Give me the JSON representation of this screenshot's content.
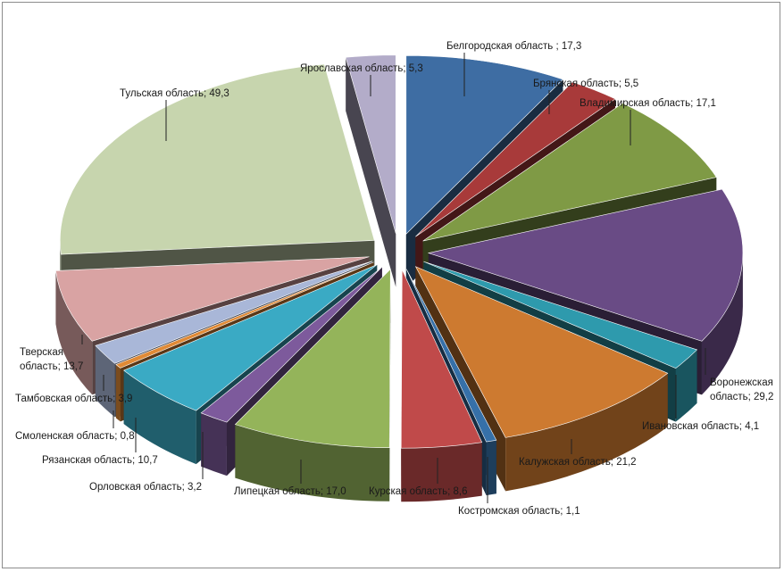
{
  "chart_data": {
    "type": "pie",
    "style": "3d-exploded",
    "title": "",
    "legend": "none",
    "slices": [
      {
        "label": "Белгородская область",
        "value": 17.3,
        "value_text": "17,3",
        "sep": " ; ",
        "color": "#3e6da3"
      },
      {
        "label": "Брянская область",
        "value": 5.5,
        "value_text": "5,5",
        "sep": "; ",
        "color": "#a83a3a"
      },
      {
        "label": "Владимирская область",
        "value": 17.1,
        "value_text": "17,1",
        "sep": "; ",
        "color": "#7f9a45"
      },
      {
        "label": "Воронежская область",
        "value": 29.2,
        "value_text": "29,2",
        "sep": "; ",
        "color": "#694b85"
      },
      {
        "label": "Ивановская область",
        "value": 4.1,
        "value_text": "4,1",
        "sep": "; ",
        "color": "#2e9aad"
      },
      {
        "label": "Калужская область",
        "value": 21.2,
        "value_text": "21,2",
        "sep": "; ",
        "color": "#cd7a30"
      },
      {
        "label": "Костромская область",
        "value": 1.1,
        "value_text": "1,1",
        "sep": "; ",
        "color": "#3670a8"
      },
      {
        "label": "Курская область",
        "value": 8.6,
        "value_text": "8,6",
        "sep": "; ",
        "color": "#c04a4a"
      },
      {
        "label": "Липецкая область",
        "value": 17.0,
        "value_text": "17,0",
        "sep": "; ",
        "color": "#94b45a"
      },
      {
        "label": "Орловская область",
        "value": 3.2,
        "value_text": "3,2",
        "sep": "; ",
        "color": "#7d5a9c"
      },
      {
        "label": "Рязанская область",
        "value": 10.7,
        "value_text": "10,7",
        "sep": "; ",
        "color": "#3aaac4"
      },
      {
        "label": "Смоленская область",
        "value": 0.8,
        "value_text": "0,8",
        "sep": "; ",
        "color": "#e08a36"
      },
      {
        "label": "Тамбовская область",
        "value": 3.9,
        "value_text": "3,9",
        "sep": "; ",
        "color": "#a9b7d8"
      },
      {
        "label": "Тверская область",
        "value": 13.7,
        "value_text": "13,7",
        "sep": "; ",
        "color": "#d9a3a3"
      },
      {
        "label": "Тульская область",
        "value": 49.3,
        "value_text": "49,3",
        "sep": "; ",
        "color": "#c7d5ae"
      },
      {
        "label": "Ярославская область",
        "value": 5.3,
        "value_text": "5,3",
        "sep": "; ",
        "color": "#b3acc9"
      }
    ]
  }
}
